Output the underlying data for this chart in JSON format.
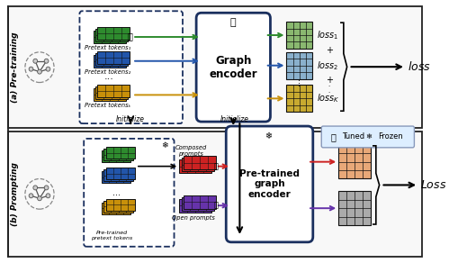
{
  "bg_color": "#ffffff",
  "section_a_label": "(a) Pre-training",
  "section_b_label": "(b) Prompting",
  "graph_encoder_label": "Graph\nencoder",
  "pretrained_encoder_label": "Pre-trained\ngraph\nencoder",
  "initialize_label1": "Initialize",
  "initialize_label2": "Initialize",
  "pretext_tokens_labels": [
    "Pretext tokens₁",
    "Pretext tokens₂",
    "Pretext tokensₖ"
  ],
  "pretrained_pretext_label": "Pre-trained\npretext tokens",
  "composed_prompts_label": "Composed\nprompts",
  "open_prompts_label": "Open prompts",
  "loss_labels": [
    "loss₁",
    "loss₂",
    "lossₖ"
  ],
  "loss_final_label": "loss",
  "Loss_final_label": "Loss",
  "tuned_label": "Tuned",
  "frozen_label": "Frozen",
  "token_green": "#2e8b2e",
  "token_blue": "#2255aa",
  "token_yellow": "#c8900a",
  "token_red": "#cc2222",
  "token_purple": "#6633aa",
  "output_green": "#8ab870",
  "output_blue": "#8ab0cc",
  "output_yellow": "#c8aa30",
  "output_orange": "#e8a878",
  "output_gray": "#aaaaaa",
  "encoder_edge": "#1a2f5e",
  "dashed_edge": "#1a2f5e",
  "arrow_green": "#2e8b2e",
  "arrow_blue": "#2255aa",
  "arrow_yellow": "#c8900a",
  "arrow_red": "#cc2222",
  "arrow_purple": "#6633aa"
}
